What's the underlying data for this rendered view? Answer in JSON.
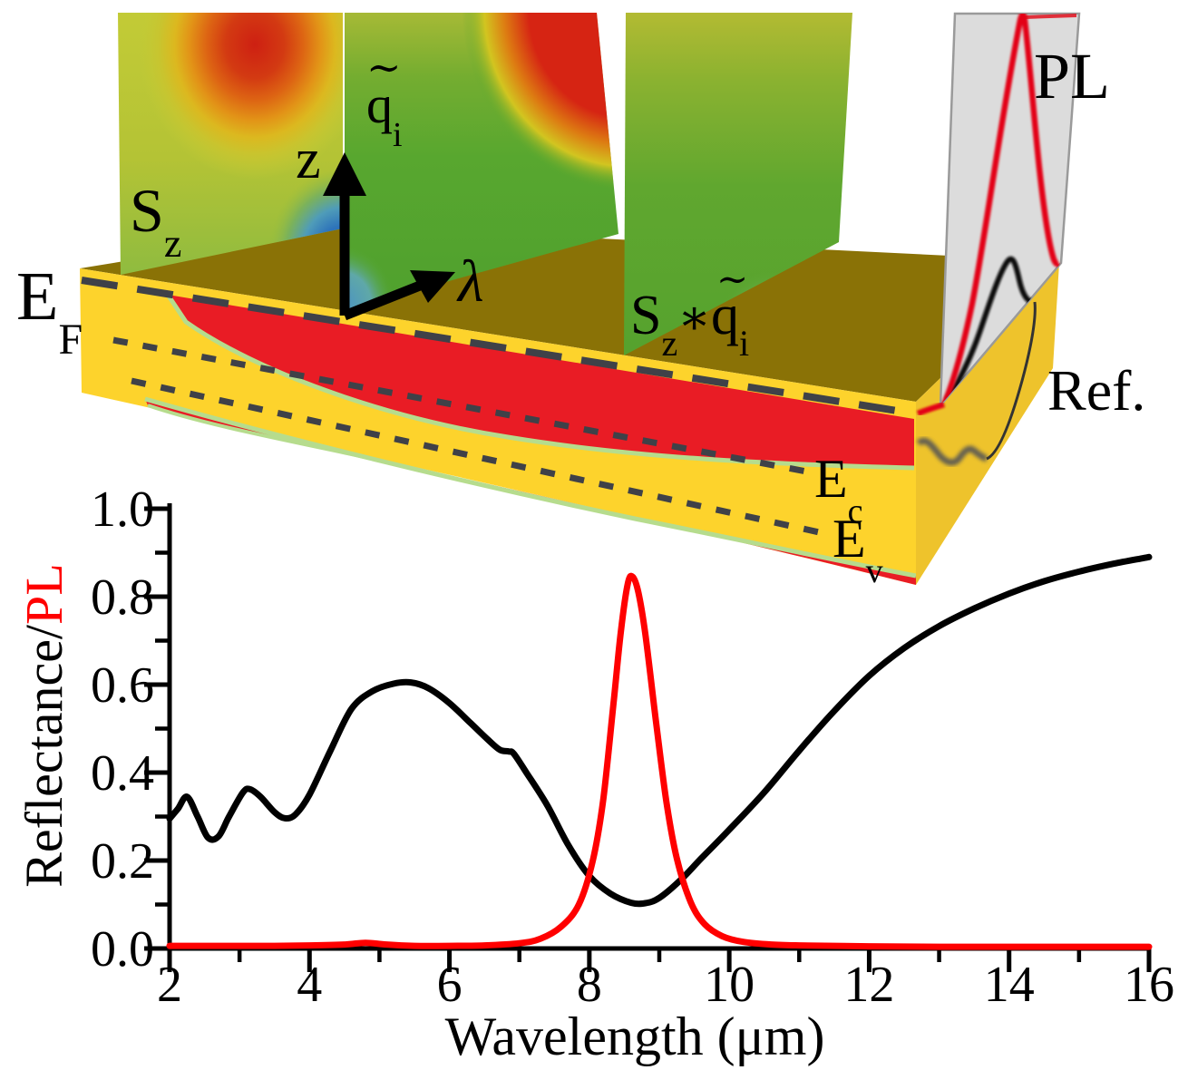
{
  "figure": {
    "panel_labels": {
      "sz_main": "S",
      "sz_sub": "z",
      "qi_tilde": "∼",
      "qi_main": "q",
      "qi_sub": "i",
      "szqi_s": "S",
      "szqi_z": "z",
      "szqi_star": "∗",
      "szqi_tilde": "∼",
      "szqi_q": "q",
      "szqi_i": "i",
      "pl": "PL",
      "ref": "Ref.",
      "ef_main": "E",
      "ef_sub": "F",
      "ec_main": "E",
      "ec_sub": "c",
      "ev_main": "E",
      "ev_sub": "v",
      "z_axis": "z",
      "lambda_axis": "λ"
    },
    "colors": {
      "slab_top": "#8a7206",
      "slab_front": "#fdd32c",
      "slab_side": "#eec32c",
      "carrier_red": "#e91c25",
      "contour_green": "#b6dc8d",
      "band_line_dark": "#3f4148",
      "pl_screen_gray": "#dcdcdc",
      "pl_curve_red": "#e30613",
      "ref_curve_black": "#111111"
    }
  },
  "chart_data": {
    "type": "line",
    "xlabel": "Wavelength (μm)",
    "ylabel_main": "Reflectance/",
    "ylabel_accent": "PL",
    "xlim": [
      2,
      16
    ],
    "ylim": [
      0,
      1
    ],
    "x_major_ticks": [
      2,
      4,
      6,
      8,
      10,
      12,
      14,
      16
    ],
    "x_minor_ticks": [
      3,
      5,
      7,
      9,
      11,
      13,
      15
    ],
    "y_major_ticks": [
      {
        "label": "0.0",
        "v": 0.0
      },
      {
        "label": "0.2",
        "v": 0.2
      },
      {
        "label": "0.4",
        "v": 0.4
      },
      {
        "label": "0.6",
        "v": 0.6
      },
      {
        "label": "0.8",
        "v": 0.8
      },
      {
        "label": "1.0",
        "v": 1.0
      }
    ],
    "y_minor_ticks": [
      0.1,
      0.3,
      0.5,
      0.7,
      0.9
    ],
    "legend": "none",
    "grid": false,
    "series": [
      {
        "name": "Reflectance",
        "color": "#000000",
        "points": [
          [
            2.0,
            0.295
          ],
          [
            2.12,
            0.318
          ],
          [
            2.25,
            0.345
          ],
          [
            2.4,
            0.3
          ],
          [
            2.55,
            0.252
          ],
          [
            2.7,
            0.255
          ],
          [
            2.85,
            0.3
          ],
          [
            3.05,
            0.355
          ],
          [
            3.15,
            0.362
          ],
          [
            3.3,
            0.345
          ],
          [
            3.5,
            0.31
          ],
          [
            3.65,
            0.296
          ],
          [
            3.8,
            0.305
          ],
          [
            4.0,
            0.35
          ],
          [
            4.3,
            0.45
          ],
          [
            4.6,
            0.545
          ],
          [
            4.9,
            0.585
          ],
          [
            5.2,
            0.602
          ],
          [
            5.45,
            0.605
          ],
          [
            5.7,
            0.592
          ],
          [
            6.0,
            0.558
          ],
          [
            6.3,
            0.513
          ],
          [
            6.55,
            0.475
          ],
          [
            6.72,
            0.452
          ],
          [
            6.85,
            0.448
          ],
          [
            6.92,
            0.443
          ],
          [
            7.1,
            0.4
          ],
          [
            7.4,
            0.325
          ],
          [
            7.7,
            0.235
          ],
          [
            8.0,
            0.165
          ],
          [
            8.3,
            0.125
          ],
          [
            8.6,
            0.104
          ],
          [
            8.8,
            0.103
          ],
          [
            9.0,
            0.115
          ],
          [
            9.3,
            0.155
          ],
          [
            9.6,
            0.205
          ],
          [
            10.0,
            0.27
          ],
          [
            10.5,
            0.355
          ],
          [
            11.0,
            0.45
          ],
          [
            11.5,
            0.54
          ],
          [
            12.0,
            0.62
          ],
          [
            12.5,
            0.683
          ],
          [
            13.0,
            0.733
          ],
          [
            13.5,
            0.773
          ],
          [
            14.0,
            0.807
          ],
          [
            14.5,
            0.835
          ],
          [
            15.0,
            0.857
          ],
          [
            15.5,
            0.875
          ],
          [
            16.0,
            0.89
          ]
        ]
      },
      {
        "name": "PL",
        "color": "#ff0000",
        "points": [
          [
            2.0,
            0.006
          ],
          [
            2.5,
            0.006
          ],
          [
            3.0,
            0.006
          ],
          [
            3.5,
            0.006
          ],
          [
            4.0,
            0.007
          ],
          [
            4.5,
            0.009
          ],
          [
            4.8,
            0.013
          ],
          [
            5.1,
            0.009
          ],
          [
            5.5,
            0.006
          ],
          [
            6.0,
            0.006
          ],
          [
            6.5,
            0.007
          ],
          [
            7.0,
            0.012
          ],
          [
            7.3,
            0.022
          ],
          [
            7.6,
            0.05
          ],
          [
            7.85,
            0.1
          ],
          [
            8.05,
            0.2
          ],
          [
            8.2,
            0.34
          ],
          [
            8.35,
            0.565
          ],
          [
            8.45,
            0.72
          ],
          [
            8.55,
            0.83
          ],
          [
            8.62,
            0.845
          ],
          [
            8.7,
            0.81
          ],
          [
            8.8,
            0.715
          ],
          [
            8.95,
            0.52
          ],
          [
            9.1,
            0.335
          ],
          [
            9.25,
            0.205
          ],
          [
            9.45,
            0.105
          ],
          [
            9.65,
            0.055
          ],
          [
            9.9,
            0.028
          ],
          [
            10.2,
            0.015
          ],
          [
            10.6,
            0.009
          ],
          [
            11.0,
            0.007
          ],
          [
            12.0,
            0.005
          ],
          [
            13.0,
            0.004
          ],
          [
            14.0,
            0.004
          ],
          [
            15.0,
            0.004
          ],
          [
            16.0,
            0.004
          ]
        ]
      }
    ]
  }
}
